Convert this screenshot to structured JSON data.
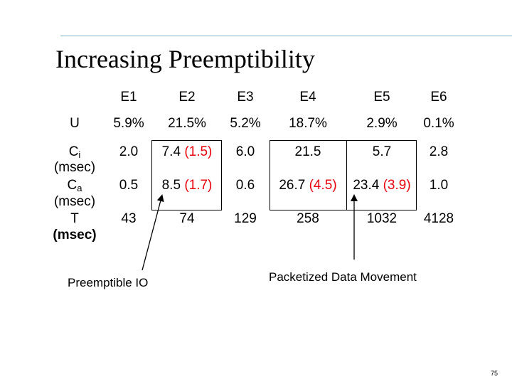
{
  "title": "Increasing Preemptibility",
  "table": {
    "columns": [
      "E1",
      "E2",
      "E3",
      "E4",
      "E5",
      "E6"
    ],
    "rows": {
      "U": {
        "label": "U",
        "values": [
          "5.9%",
          "21.5%",
          "5.2%",
          "18.7%",
          "2.9%",
          "0.1%"
        ]
      },
      "Ci": {
        "label_main": "C",
        "label_sub": "i",
        "unit": "(msec)",
        "values": [
          "2.0",
          "7.4",
          "6.0",
          "21.5",
          "5.7",
          "2.8"
        ],
        "annotations": [
          "",
          "(1.5)",
          "",
          "",
          "",
          ""
        ]
      },
      "Ca": {
        "label_main": "C",
        "label_sub": "a",
        "unit": "(msec)",
        "values": [
          "0.5",
          "8.5",
          "0.6",
          "26.7",
          "23.4",
          "1.0"
        ],
        "annotations": [
          "",
          "(1.7)",
          "",
          "(4.5)",
          "(3.9)",
          ""
        ]
      },
      "T": {
        "label": "T",
        "unit": "(msec)",
        "values": [
          "43",
          "74",
          "129",
          "258",
          "1032",
          "4128"
        ]
      }
    }
  },
  "captions": {
    "preemptible_io": "Preemptible IO",
    "packetized": "Packetized Data Movement"
  },
  "page_number": "75",
  "colors": {
    "accent_rule": "#7fb3c8",
    "highlight": "#e8000b",
    "text": "#000000"
  }
}
